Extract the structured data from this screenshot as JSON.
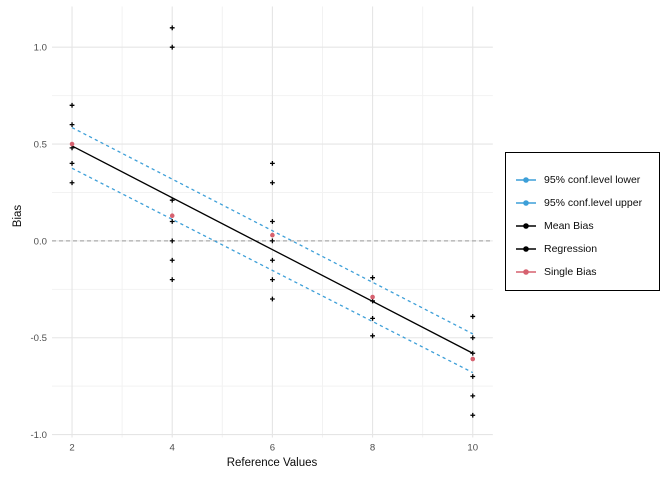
{
  "figure": {
    "background": "#ffffff"
  },
  "axes": {
    "x": {
      "title": "Reference Values",
      "tick_labels": [
        "2",
        "4",
        "6",
        "8",
        "10"
      ]
    },
    "y": {
      "title": "Bias",
      "tick_labels": [
        "1.0",
        "0.5",
        "0.0",
        "-0.5",
        "-1.0"
      ]
    }
  },
  "legend": {
    "position": "right",
    "items": [
      {
        "label": "95% conf.level lower",
        "color": "#3D9FD8",
        "key": "line-dot"
      },
      {
        "label": "95% conf.level upper",
        "color": "#3D9FD8",
        "key": "line-dot"
      },
      {
        "label": "Mean Bias",
        "color": "#000000",
        "key": "line-dot"
      },
      {
        "label": "Regression",
        "color": "#000000",
        "key": "line-dot"
      },
      {
        "label": "Single Bias",
        "color": "#D6616F",
        "key": "line-dot"
      }
    ]
  },
  "colors": {
    "conf_band": "#3D9FD8",
    "regression": "#000000",
    "mean_bias": "#000000",
    "single_bias": "#D6616F",
    "grid_major": "#E5E5E5",
    "grid_minor": "#F2F2F2",
    "zero_line": "#ABABAB",
    "tick_label": "#4D4D4D",
    "axis_title": "#0c0c0c"
  },
  "chart_data": {
    "type": "scatter",
    "title": "",
    "xlabel": "Reference Values",
    "ylabel": "Bias",
    "xlim": [
      1.6,
      10.4
    ],
    "ylim": [
      -1.015,
      1.21
    ],
    "x_major_ticks": [
      2,
      4,
      6,
      8,
      10
    ],
    "x_minor_ticks": [
      3,
      5,
      7,
      9
    ],
    "y_major_ticks": [
      1.0,
      0.5,
      0.0,
      -0.5,
      -1.0
    ],
    "y_minor_ticks": [
      0.75,
      0.25,
      -0.25,
      -0.75
    ],
    "grid": "major+minor",
    "legend_position": "right",
    "zero_reference_line": 0,
    "series": [
      {
        "name": "Mean Bias",
        "type": "points",
        "marker": "plus",
        "color": "#000000",
        "points": [
          [
            2,
            0.7
          ],
          [
            2,
            0.6
          ],
          [
            2,
            0.48
          ],
          [
            2,
            0.4
          ],
          [
            2,
            0.3
          ],
          [
            4,
            1.1
          ],
          [
            4,
            1.0
          ],
          [
            4,
            0.21
          ],
          [
            4,
            0.1
          ],
          [
            4,
            0.0
          ],
          [
            4,
            -0.1
          ],
          [
            4,
            -0.2
          ],
          [
            6,
            0.4
          ],
          [
            6,
            0.3
          ],
          [
            6,
            0.1
          ],
          [
            6,
            0.0
          ],
          [
            6,
            -0.1
          ],
          [
            6,
            -0.2
          ],
          [
            6,
            -0.3
          ],
          [
            8,
            -0.19
          ],
          [
            8,
            -0.31
          ],
          [
            8,
            -0.4
          ],
          [
            8,
            -0.49
          ],
          [
            10,
            -0.39
          ],
          [
            10,
            -0.5
          ],
          [
            10,
            -0.58
          ],
          [
            10,
            -0.7
          ],
          [
            10,
            -0.8
          ],
          [
            10,
            -0.9
          ]
        ]
      },
      {
        "name": "Single Bias",
        "type": "points",
        "marker": "dot",
        "color": "#D6616F",
        "points": [
          [
            2,
            0.5
          ],
          [
            4,
            0.13
          ],
          [
            6,
            0.03
          ],
          [
            8,
            -0.29
          ],
          [
            10,
            -0.61
          ]
        ]
      },
      {
        "name": "Regression",
        "type": "line",
        "line_style": "solid",
        "color": "#000000",
        "points": [
          [
            2,
            0.49
          ],
          [
            10,
            -0.58
          ]
        ]
      },
      {
        "name": "95% conf.level upper",
        "type": "line",
        "line_style": "dashed",
        "color": "#3D9FD8",
        "points": [
          [
            2,
            0.585
          ],
          [
            10,
            -0.48
          ]
        ]
      },
      {
        "name": "95% conf.level lower",
        "type": "line",
        "line_style": "dashed",
        "color": "#3D9FD8",
        "points": [
          [
            2,
            0.375
          ],
          [
            10,
            -0.68
          ]
        ]
      }
    ]
  }
}
